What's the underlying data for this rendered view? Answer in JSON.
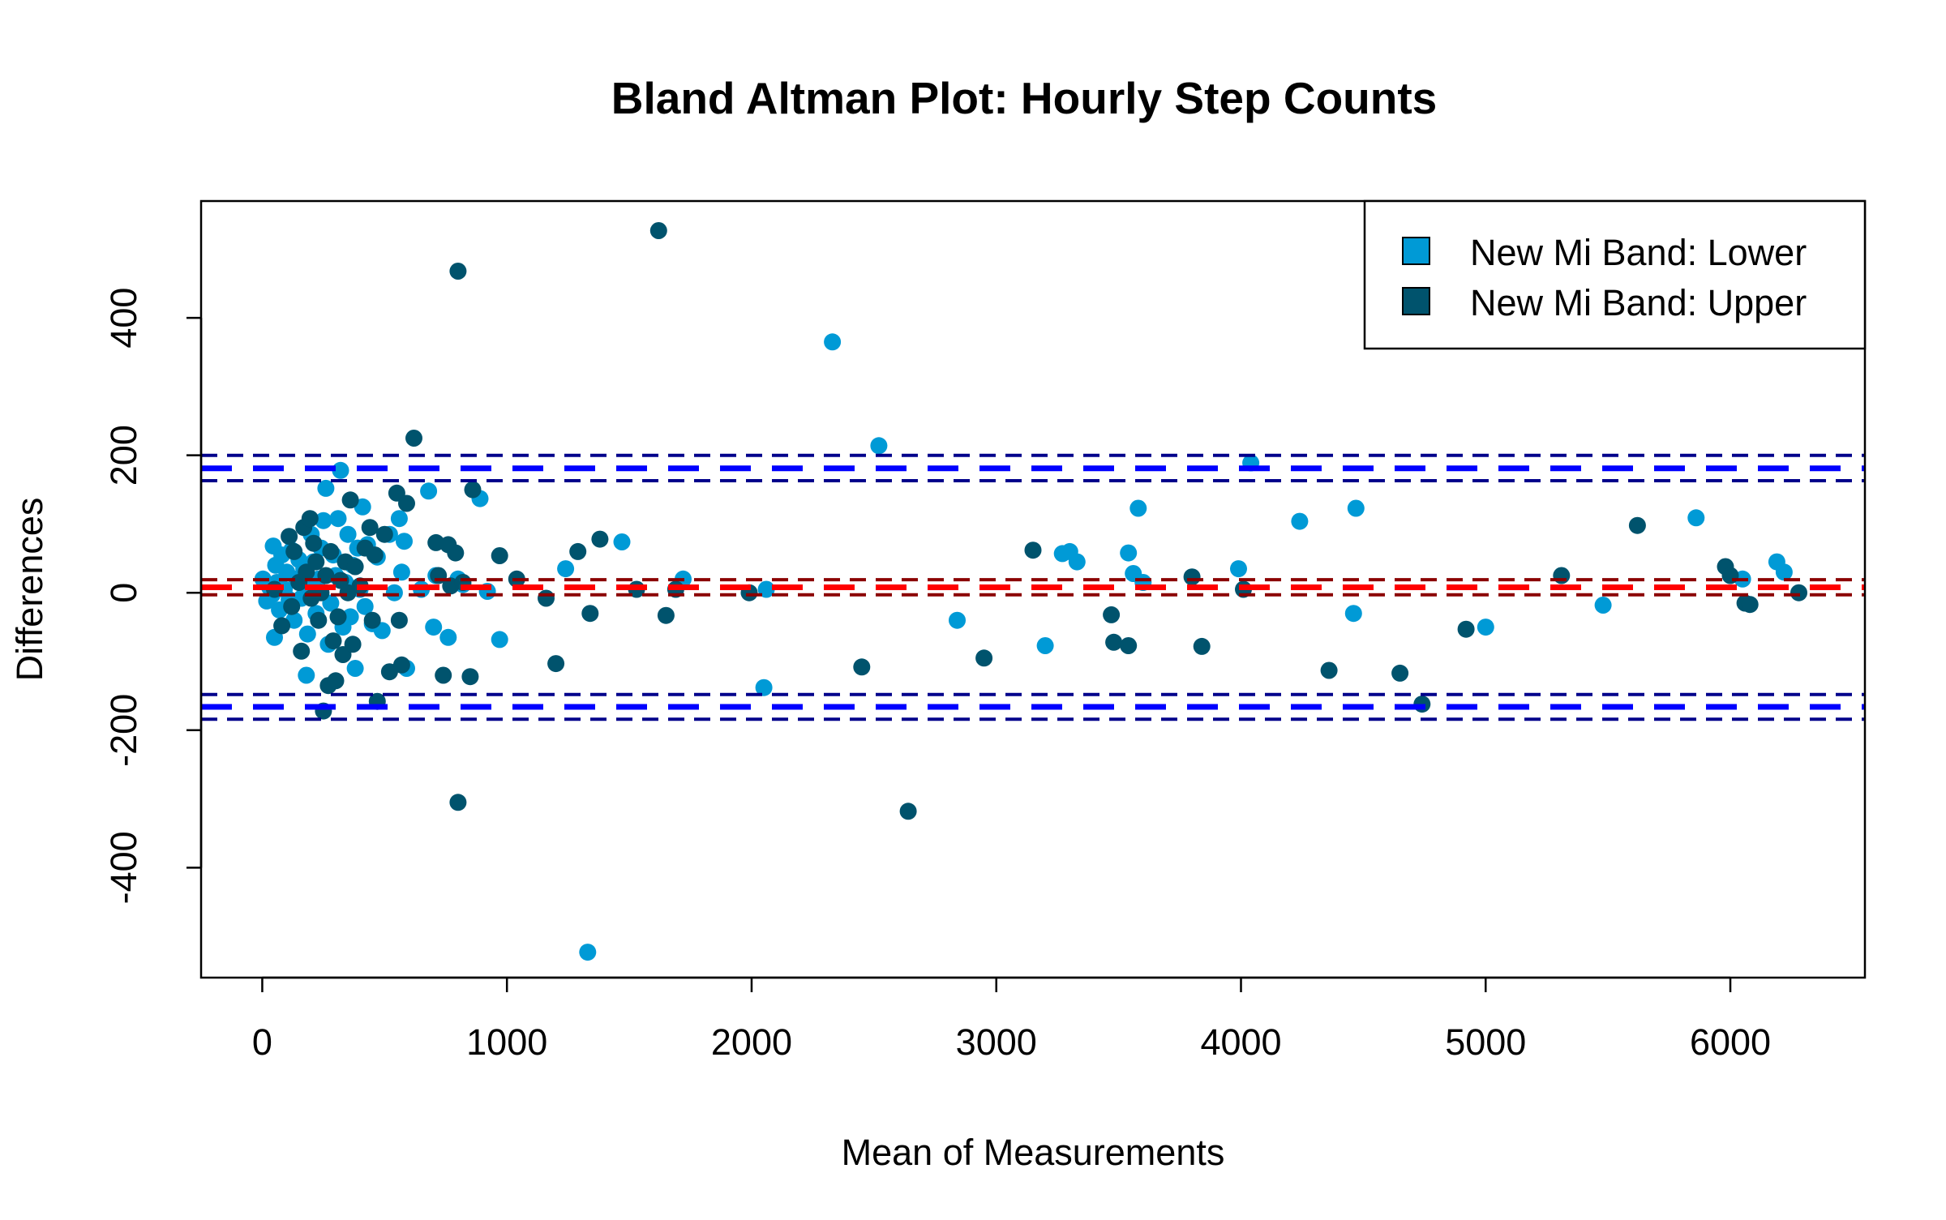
{
  "chart_data": {
    "type": "scatter",
    "title": "Bland Altman Plot: Hourly Step Counts",
    "xlabel": "Mean of Measurements",
    "ylabel": "Differences",
    "xlim": [
      -250,
      6550
    ],
    "ylim": [
      -560,
      570
    ],
    "x_ticks": [
      0,
      1000,
      2000,
      3000,
      4000,
      5000,
      6000
    ],
    "y_ticks": [
      -400,
      -200,
      0,
      200,
      400
    ],
    "x_tick_labels": [
      "0",
      "1000",
      "2000",
      "3000",
      "4000",
      "5000",
      "6000"
    ],
    "y_tick_labels": [
      "-400",
      "-200",
      "0",
      "200",
      "400"
    ],
    "grid": false,
    "legend_position": "top-right",
    "reference_lines": [
      {
        "role": "upper limit of agreement",
        "y": 181,
        "style": "long-dash",
        "color": "#0000ff"
      },
      {
        "role": "upper limit CI",
        "y": 200,
        "style": "dash",
        "color": "#00008b"
      },
      {
        "role": "upper limit CI",
        "y": 163,
        "style": "dash",
        "color": "#00008b"
      },
      {
        "role": "mean difference",
        "y": 8,
        "style": "long-dash",
        "color": "#ff0000"
      },
      {
        "role": "mean difference CI",
        "y": 19,
        "style": "dash",
        "color": "#8b0000"
      },
      {
        "role": "mean difference CI",
        "y": -3,
        "style": "dash",
        "color": "#8b0000"
      },
      {
        "role": "lower limit of agreement",
        "y": -166,
        "style": "long-dash",
        "color": "#0000ff"
      },
      {
        "role": "lower limit CI",
        "y": -148,
        "style": "dash",
        "color": "#00008b"
      },
      {
        "role": "lower limit CI",
        "y": -184,
        "style": "dash",
        "color": "#00008b"
      }
    ],
    "series": [
      {
        "name": "New Mi Band: Lower",
        "color": "#009ad6",
        "points": [
          [
            3,
            20
          ],
          [
            18,
            -12
          ],
          [
            30,
            8
          ],
          [
            40,
            -3
          ],
          [
            45,
            68
          ],
          [
            50,
            -65
          ],
          [
            55,
            40
          ],
          [
            60,
            15
          ],
          [
            70,
            -25
          ],
          [
            80,
            55
          ],
          [
            90,
            5
          ],
          [
            100,
            30
          ],
          [
            110,
            -10
          ],
          [
            120,
            62
          ],
          [
            130,
            -40
          ],
          [
            140,
            20
          ],
          [
            150,
            48
          ],
          [
            160,
            -8
          ],
          [
            170,
            35
          ],
          [
            180,
            -120
          ],
          [
            185,
            -60
          ],
          [
            190,
            10
          ],
          [
            200,
            85
          ],
          [
            210,
            45
          ],
          [
            220,
            -30
          ],
          [
            230,
            20
          ],
          [
            240,
            65
          ],
          [
            250,
            105
          ],
          [
            260,
            152
          ],
          [
            270,
            -75
          ],
          [
            280,
            -15
          ],
          [
            290,
            55
          ],
          [
            300,
            25
          ],
          [
            310,
            108
          ],
          [
            320,
            178
          ],
          [
            330,
            -50
          ],
          [
            340,
            15
          ],
          [
            350,
            85
          ],
          [
            360,
            -35
          ],
          [
            370,
            40
          ],
          [
            380,
            -110
          ],
          [
            390,
            65
          ],
          [
            400,
            5
          ],
          [
            410,
            125
          ],
          [
            420,
            -20
          ],
          [
            430,
            70
          ],
          [
            450,
            -45
          ],
          [
            470,
            52
          ],
          [
            490,
            -55
          ],
          [
            520,
            85
          ],
          [
            540,
            0
          ],
          [
            560,
            108
          ],
          [
            570,
            30
          ],
          [
            580,
            75
          ],
          [
            590,
            -110
          ],
          [
            650,
            5
          ],
          [
            680,
            148
          ],
          [
            700,
            -50
          ],
          [
            710,
            25
          ],
          [
            760,
            -65
          ],
          [
            800,
            20
          ],
          [
            820,
            12
          ],
          [
            890,
            137
          ],
          [
            920,
            2
          ],
          [
            970,
            -68
          ],
          [
            1240,
            35
          ],
          [
            1330,
            -523
          ],
          [
            1470,
            74
          ],
          [
            1720,
            20
          ],
          [
            2050,
            -138
          ],
          [
            2060,
            5
          ],
          [
            2330,
            365
          ],
          [
            2520,
            214
          ],
          [
            2840,
            -40
          ],
          [
            3200,
            -77
          ],
          [
            3270,
            57
          ],
          [
            3300,
            60
          ],
          [
            3330,
            45
          ],
          [
            3540,
            58
          ],
          [
            3560,
            28
          ],
          [
            3580,
            123
          ],
          [
            3600,
            15
          ],
          [
            3990,
            35
          ],
          [
            4040,
            189
          ],
          [
            4240,
            104
          ],
          [
            4460,
            -30
          ],
          [
            4470,
            123
          ],
          [
            5000,
            -50
          ],
          [
            5480,
            -18
          ],
          [
            5860,
            109
          ],
          [
            6050,
            20
          ],
          [
            6190,
            45
          ],
          [
            6220,
            30
          ]
        ]
      },
      {
        "name": "New Mi Band: Upper",
        "color": "#00536d",
        "points": [
          [
            50,
            5
          ],
          [
            80,
            -48
          ],
          [
            110,
            82
          ],
          [
            120,
            -20
          ],
          [
            130,
            60
          ],
          [
            150,
            15
          ],
          [
            160,
            -85
          ],
          [
            170,
            95
          ],
          [
            180,
            30
          ],
          [
            195,
            108
          ],
          [
            200,
            -8
          ],
          [
            210,
            72
          ],
          [
            220,
            45
          ],
          [
            230,
            -40
          ],
          [
            240,
            0
          ],
          [
            250,
            -172
          ],
          [
            260,
            25
          ],
          [
            270,
            -135
          ],
          [
            280,
            60
          ],
          [
            290,
            -70
          ],
          [
            300,
            -128
          ],
          [
            310,
            -35
          ],
          [
            320,
            18
          ],
          [
            330,
            -90
          ],
          [
            340,
            45
          ],
          [
            350,
            0
          ],
          [
            360,
            135
          ],
          [
            370,
            -75
          ],
          [
            380,
            38
          ],
          [
            400,
            10
          ],
          [
            420,
            65
          ],
          [
            440,
            95
          ],
          [
            450,
            -40
          ],
          [
            460,
            55
          ],
          [
            470,
            -158
          ],
          [
            500,
            85
          ],
          [
            520,
            -115
          ],
          [
            550,
            145
          ],
          [
            560,
            -40
          ],
          [
            570,
            -105
          ],
          [
            590,
            130
          ],
          [
            620,
            225
          ],
          [
            710,
            73
          ],
          [
            720,
            25
          ],
          [
            740,
            -120
          ],
          [
            760,
            70
          ],
          [
            770,
            10
          ],
          [
            790,
            58
          ],
          [
            800,
            468
          ],
          [
            800,
            -305
          ],
          [
            820,
            15
          ],
          [
            850,
            -122
          ],
          [
            860,
            150
          ],
          [
            970,
            54
          ],
          [
            1040,
            20
          ],
          [
            1160,
            -8
          ],
          [
            1200,
            -103
          ],
          [
            1290,
            60
          ],
          [
            1340,
            -30
          ],
          [
            1380,
            78
          ],
          [
            1530,
            5
          ],
          [
            1620,
            527
          ],
          [
            1650,
            -33
          ],
          [
            1690,
            5
          ],
          [
            1990,
            0
          ],
          [
            2450,
            -108
          ],
          [
            2640,
            -318
          ],
          [
            2950,
            -95
          ],
          [
            3150,
            62
          ],
          [
            3470,
            -32
          ],
          [
            3480,
            -72
          ],
          [
            3540,
            -77
          ],
          [
            3800,
            23
          ],
          [
            3840,
            -78
          ],
          [
            4010,
            5
          ],
          [
            4360,
            -113
          ],
          [
            4650,
            -117
          ],
          [
            4740,
            -162
          ],
          [
            4920,
            -53
          ],
          [
            5310,
            25
          ],
          [
            5620,
            98
          ],
          [
            5980,
            38
          ],
          [
            6000,
            25
          ],
          [
            6060,
            -15
          ],
          [
            6080,
            -17
          ],
          [
            6280,
            0
          ]
        ]
      }
    ]
  }
}
